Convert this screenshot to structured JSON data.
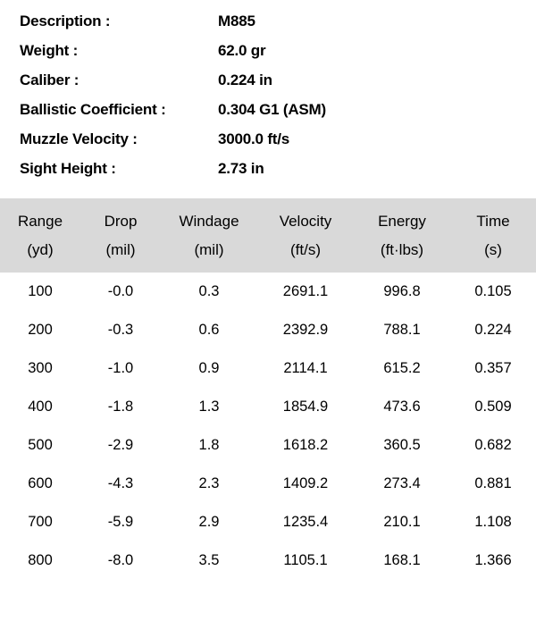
{
  "meta": {
    "rows": [
      {
        "label": "Description :",
        "value": "M885"
      },
      {
        "label": "Weight :",
        "value": "62.0 gr"
      },
      {
        "label": "Caliber :",
        "value": "0.224 in"
      },
      {
        "label": "Ballistic Coefficient :",
        "value": "0.304 G1 (ASM)"
      },
      {
        "label": "Muzzle Velocity :",
        "value": "3000.0 ft/s"
      },
      {
        "label": "Sight Height :",
        "value": "2.73 in"
      }
    ]
  },
  "table": {
    "columns": [
      {
        "name": "Range",
        "unit": "(yd)",
        "class": "col-range"
      },
      {
        "name": "Drop",
        "unit": "(mil)",
        "class": "col-drop"
      },
      {
        "name": "Windage",
        "unit": "(mil)",
        "class": "col-wind"
      },
      {
        "name": "Velocity",
        "unit": "(ft/s)",
        "class": "col-vel"
      },
      {
        "name": "Energy",
        "unit": "(ft·lbs)",
        "class": "col-energy"
      },
      {
        "name": "Time",
        "unit": "(s)",
        "class": "col-time"
      }
    ],
    "rows": [
      [
        "100",
        "-0.0",
        "0.3",
        "2691.1",
        "996.8",
        "0.105"
      ],
      [
        "200",
        "-0.3",
        "0.6",
        "2392.9",
        "788.1",
        "0.224"
      ],
      [
        "300",
        "-1.0",
        "0.9",
        "2114.1",
        "615.2",
        "0.357"
      ],
      [
        "400",
        "-1.8",
        "1.3",
        "1854.9",
        "473.6",
        "0.509"
      ],
      [
        "500",
        "-2.9",
        "1.8",
        "1618.2",
        "360.5",
        "0.682"
      ],
      [
        "600",
        "-4.3",
        "2.3",
        "1409.2",
        "273.4",
        "0.881"
      ],
      [
        "700",
        "-5.9",
        "2.9",
        "1235.4",
        "210.1",
        "1.108"
      ],
      [
        "800",
        "-8.0",
        "3.5",
        "1105.1",
        "168.1",
        "1.366"
      ]
    ],
    "header_bg": "#d9d9d9",
    "body_bg": "#ffffff",
    "text_color": "#000000"
  }
}
